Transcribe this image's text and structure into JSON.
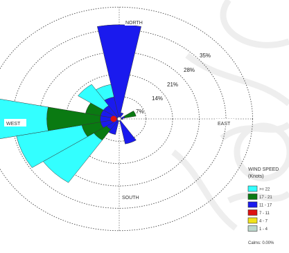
{
  "chart_data": {
    "type": "wind-rose",
    "directions": [
      {
        "name": "NORTH"
      },
      {
        "name": "EAST"
      },
      {
        "name": "SOUTH"
      },
      {
        "name": "WEST"
      }
    ],
    "ring_labels": [
      "7%",
      "14%",
      "21%",
      "28%",
      "35%"
    ],
    "ring_values": [
      7,
      14,
      21,
      28,
      35
    ],
    "legend": {
      "title": "WIND SPEED",
      "unit": "(Knots)",
      "bins": [
        {
          "label": ">= 22",
          "color": "#33ffff"
        },
        {
          "label": "17 - 21",
          "color": "#0a7a12"
        },
        {
          "label": "11 - 17",
          "color": "#1a1aee"
        },
        {
          "label": "7 - 11",
          "color": "#dd1111"
        },
        {
          "label": "4 - 7",
          "color": "#f0e21a"
        },
        {
          "label": "1 - 4",
          "color": "#bcd8cc"
        }
      ],
      "calms": "Calms: 0.00%"
    },
    "petals": [
      {
        "direction_deg": 0,
        "segments": [
          {
            "bin": 2,
            "value": 29.5
          }
        ]
      },
      {
        "direction_deg": 22.5,
        "segments": [
          {
            "bin": 2,
            "value": 2
          }
        ]
      },
      {
        "direction_deg": 67.5,
        "segments": [
          {
            "bin": 2,
            "value": 1.5
          },
          {
            "bin": 1,
            "value": 3
          }
        ]
      },
      {
        "direction_deg": 90,
        "segments": [
          {
            "bin": 2,
            "value": 1
          }
        ]
      },
      {
        "direction_deg": 157.5,
        "segments": [
          {
            "bin": 2,
            "value": 8
          }
        ]
      },
      {
        "direction_deg": 202.5,
        "segments": [
          {
            "bin": 2,
            "value": 5
          }
        ]
      },
      {
        "direction_deg": 225,
        "segments": [
          {
            "bin": 2,
            "value": 4
          },
          {
            "bin": 1,
            "value": 4
          },
          {
            "bin": 0,
            "value": 16
          }
        ]
      },
      {
        "direction_deg": 247.5,
        "segments": [
          {
            "bin": 2,
            "value": 5
          },
          {
            "bin": 1,
            "value": 5
          },
          {
            "bin": 0,
            "value": 17.5
          }
        ]
      },
      {
        "direction_deg": 270,
        "segments": [
          {
            "bin": 2,
            "value": 5
          },
          {
            "bin": 1,
            "value": 14
          },
          {
            "bin": 0,
            "value": 15
          }
        ]
      },
      {
        "direction_deg": 292.5,
        "segments": [
          {
            "bin": 2,
            "value": 5
          },
          {
            "bin": 1,
            "value": 4
          }
        ]
      },
      {
        "direction_deg": 315,
        "segments": [
          {
            "bin": 2,
            "value": 5
          },
          {
            "bin": 0,
            "value": 8
          }
        ]
      },
      {
        "direction_deg": 337.5,
        "segments": [
          {
            "bin": 2,
            "value": 7
          },
          {
            "bin": 0,
            "value": 4
          }
        ]
      }
    ]
  }
}
